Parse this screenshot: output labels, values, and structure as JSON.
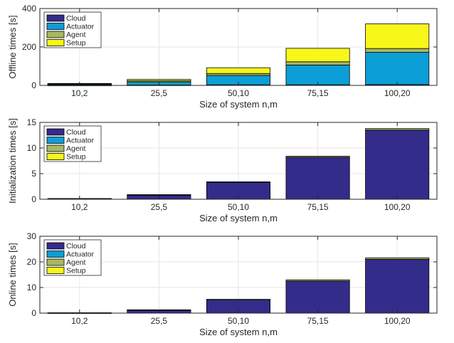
{
  "colors": {
    "cloud": "#332c8a",
    "actuator": "#0c9ed6",
    "agent": "#a8b860",
    "setup": "#f7f71a",
    "grid": "#e6e6e6",
    "axis": "#262626"
  },
  "chart_data": [
    {
      "type": "bar",
      "stacked": true,
      "ylabel": "Offline times [s]",
      "xlabel": "Size of system n,m",
      "categories": [
        "10,2",
        "25,5",
        "50,10",
        "75,15",
        "100,20"
      ],
      "ylim": [
        0,
        400
      ],
      "yticks": [
        0,
        200,
        400
      ],
      "grid": true,
      "legend_position": "top-left",
      "series": [
        {
          "name": "Cloud",
          "color": "#332c8a",
          "values": [
            1,
            2,
            3,
            3,
            4
          ]
        },
        {
          "name": "Actuator",
          "color": "#0c9ed6",
          "values": [
            5,
            16,
            49,
            103,
            168
          ]
        },
        {
          "name": "Agent",
          "color": "#a8b860",
          "values": [
            2,
            6,
            10,
            17,
            20
          ]
        },
        {
          "name": "Setup",
          "color": "#f7f71a",
          "values": [
            2,
            7,
            30,
            70,
            128
          ]
        }
      ]
    },
    {
      "type": "bar",
      "stacked": true,
      "ylabel": "Initialization times [s]",
      "xlabel": "Size of system n,m",
      "categories": [
        "10,2",
        "25,5",
        "50,10",
        "75,15",
        "100,20"
      ],
      "ylim": [
        0,
        15
      ],
      "yticks": [
        0,
        5,
        10,
        15
      ],
      "grid": true,
      "legend_position": "top-left",
      "series": [
        {
          "name": "Cloud",
          "color": "#332c8a",
          "values": [
            0.1,
            0.8,
            3.3,
            8.2,
            13.5
          ]
        },
        {
          "name": "Actuator",
          "color": "#0c9ed6",
          "values": [
            0,
            0,
            0,
            0,
            0
          ]
        },
        {
          "name": "Agent",
          "color": "#a8b860",
          "values": [
            0.05,
            0.1,
            0.1,
            0.2,
            0.3
          ]
        },
        {
          "name": "Setup",
          "color": "#f7f71a",
          "values": [
            0,
            0,
            0,
            0,
            0
          ]
        }
      ]
    },
    {
      "type": "bar",
      "stacked": true,
      "ylabel": "Online times [s]",
      "xlabel": "Size of system n,m",
      "categories": [
        "10,2",
        "25,5",
        "50,10",
        "75,15",
        "100,20"
      ],
      "ylim": [
        0,
        30
      ],
      "yticks": [
        0,
        10,
        20,
        30
      ],
      "grid": true,
      "legend_position": "top-left",
      "series": [
        {
          "name": "Cloud",
          "color": "#332c8a",
          "values": [
            0.1,
            1.1,
            5.1,
            12.5,
            21
          ]
        },
        {
          "name": "Actuator",
          "color": "#0c9ed6",
          "values": [
            0,
            0,
            0,
            0,
            0
          ]
        },
        {
          "name": "Agent",
          "color": "#a8b860",
          "values": [
            0.05,
            0.2,
            0.3,
            0.5,
            0.6
          ]
        },
        {
          "name": "Setup",
          "color": "#f7f71a",
          "values": [
            0,
            0,
            0,
            0,
            0
          ]
        }
      ]
    }
  ]
}
